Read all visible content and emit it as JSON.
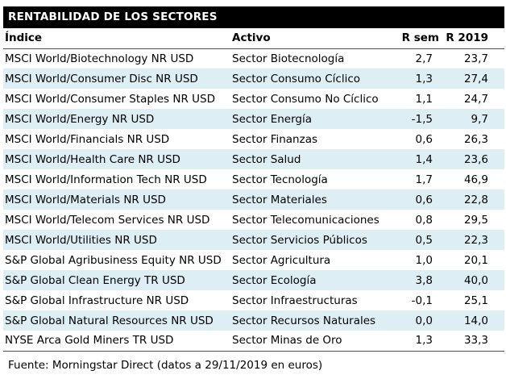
{
  "title": "RENTABILIDAD DE LOS SECTORES",
  "table": {
    "columns": [
      "Índice",
      "Activo",
      "R sem",
      "R 2019"
    ],
    "rows": [
      {
        "indice": "MSCI World/Biotechnology NR USD",
        "activo": "Sector Biotecnología",
        "r_sem": "2,7",
        "r_2019": "23,7"
      },
      {
        "indice": "MSCI World/Consumer Disc NR USD",
        "activo": "Sector Consumo Cíclico",
        "r_sem": "1,3",
        "r_2019": "27,4"
      },
      {
        "indice": "MSCI World/Consumer Staples NR USD",
        "activo": "Sector Consumo No Cíclico",
        "r_sem": "1,1",
        "r_2019": "24,7"
      },
      {
        "indice": "MSCI World/Energy NR USD",
        "activo": "Sector Energía",
        "r_sem": "-1,5",
        "r_2019": "9,7"
      },
      {
        "indice": "MSCI World/Financials NR USD",
        "activo": "Sector Finanzas",
        "r_sem": "0,6",
        "r_2019": "26,3"
      },
      {
        "indice": "MSCI World/Health Care NR USD",
        "activo": "Sector Salud",
        "r_sem": "1,4",
        "r_2019": "23,6"
      },
      {
        "indice": "MSCI World/Information Tech NR USD",
        "activo": "Sector Tecnología",
        "r_sem": "1,7",
        "r_2019": "46,9"
      },
      {
        "indice": "MSCI World/Materials NR USD",
        "activo": "Sector Materiales",
        "r_sem": "0,6",
        "r_2019": "22,8"
      },
      {
        "indice": "MSCI World/Telecom Services NR USD",
        "activo": "Sector Telecomunicaciones",
        "r_sem": "0,8",
        "r_2019": "29,5"
      },
      {
        "indice": "MSCI World/Utilities NR USD",
        "activo": "Sector Servicios Públicos",
        "r_sem": "0,5",
        "r_2019": "22,3"
      },
      {
        "indice": "S&P Global Agribusiness Equity NR USD",
        "activo": "Sector Agricultura",
        "r_sem": "1,0",
        "r_2019": "20,1"
      },
      {
        "indice": "S&P Global Clean Energy TR USD",
        "activo": "Sector Ecología",
        "r_sem": "3,8",
        "r_2019": "40,0"
      },
      {
        "indice": "S&P Global Infrastructure NR USD",
        "activo": "Sector Infraestructuras",
        "r_sem": "-0,1",
        "r_2019": "25,1"
      },
      {
        "indice": "S&P Global Natural Resources NR USD",
        "activo": "Sector Recursos Naturales",
        "r_sem": "0,0",
        "r_2019": "14,0"
      },
      {
        "indice": "NYSE Arca Gold Miners TR USD",
        "activo": "Sector Minas de Oro",
        "r_sem": "1,3",
        "r_2019": "33,3"
      }
    ]
  },
  "footer": "Fuente: Morningstar Direct (datos a 29/11/2019 en euros)",
  "colors": {
    "title_bg": "#000000",
    "title_text": "#ffffff",
    "row_alt": "#ddeff5",
    "border": "#4d4d4d",
    "text": "#000000"
  }
}
